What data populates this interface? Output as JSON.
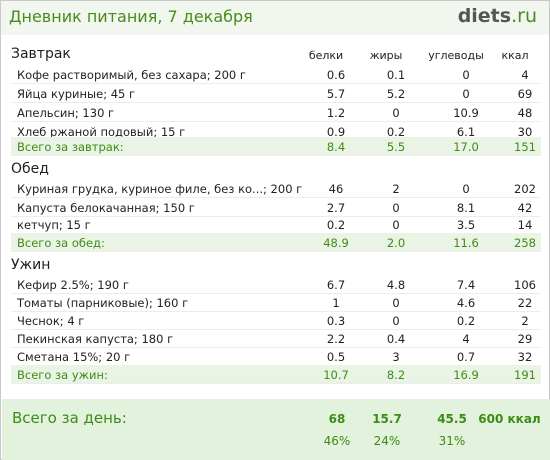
{
  "header": {
    "title": "Дневник питания, 7 декабря",
    "logo_main": "diets",
    "logo_tld": ".ru"
  },
  "columns": {
    "protein": "белки",
    "fat": "жиры",
    "carbs": "углеводы",
    "kcal": "ккал"
  },
  "sections": [
    {
      "title": "Завтрак",
      "items": [
        {
          "name": "Кофе растворимый, без сахара; 200 г",
          "protein": "0.6",
          "fat": "0.1",
          "carbs": "0",
          "kcal": "4"
        },
        {
          "name": "Яйца куриные; 45 г",
          "protein": "5.7",
          "fat": "5.2",
          "carbs": "0",
          "kcal": "69"
        },
        {
          "name": "Апельсин; 130 г",
          "protein": "1.2",
          "fat": "0",
          "carbs": "10.9",
          "kcal": "48"
        },
        {
          "name": "Хлеб ржаной подовый; 15 г",
          "protein": "0.9",
          "fat": "0.2",
          "carbs": "6.1",
          "kcal": "30"
        }
      ],
      "total": {
        "label": "Всего за завтрак:",
        "protein": "8.4",
        "fat": "5.5",
        "carbs": "17.0",
        "kcal": "151"
      }
    },
    {
      "title": "Обед",
      "items": [
        {
          "name": "Куриная грудка, куриное филе, без ко...; 200 г",
          "protein": "46",
          "fat": "2",
          "carbs": "0",
          "kcal": "202"
        },
        {
          "name": "Капуста белокачанная; 150 г",
          "protein": "2.7",
          "fat": "0",
          "carbs": "8.1",
          "kcal": "42"
        },
        {
          "name": "кетчуп; 15 г",
          "protein": "0.2",
          "fat": "0",
          "carbs": "3.5",
          "kcal": "14"
        }
      ],
      "total": {
        "label": "Всего за обед:",
        "protein": "48.9",
        "fat": "2.0",
        "carbs": "11.6",
        "kcal": "258"
      }
    },
    {
      "title": "Ужин",
      "items": [
        {
          "name": "Кефир 2.5%; 190 г",
          "protein": "6.7",
          "fat": "4.8",
          "carbs": "7.4",
          "kcal": "106"
        },
        {
          "name": "Томаты (парниковые); 160 г",
          "protein": "1",
          "fat": "0",
          "carbs": "4.6",
          "kcal": "22"
        },
        {
          "name": "Чеснок; 4 г",
          "protein": "0.3",
          "fat": "0",
          "carbs": "0.2",
          "kcal": "2"
        },
        {
          "name": "Пекинская капуста; 180 г",
          "protein": "2.2",
          "fat": "0.4",
          "carbs": "4",
          "kcal": "29"
        },
        {
          "name": "Сметана 15%; 20 г",
          "protein": "0.5",
          "fat": "3",
          "carbs": "0.7",
          "kcal": "32"
        }
      ],
      "total": {
        "label": "Всего за ужин:",
        "protein": "10.7",
        "fat": "8.2",
        "carbs": "16.9",
        "kcal": "191"
      }
    }
  ],
  "day_total": {
    "label": "Всего за день:",
    "protein": "68",
    "fat": "15.7",
    "carbs": "45.5",
    "kcal": "600 ккал",
    "protein_pct": "46%",
    "fat_pct": "24%",
    "carbs_pct": "31%"
  }
}
